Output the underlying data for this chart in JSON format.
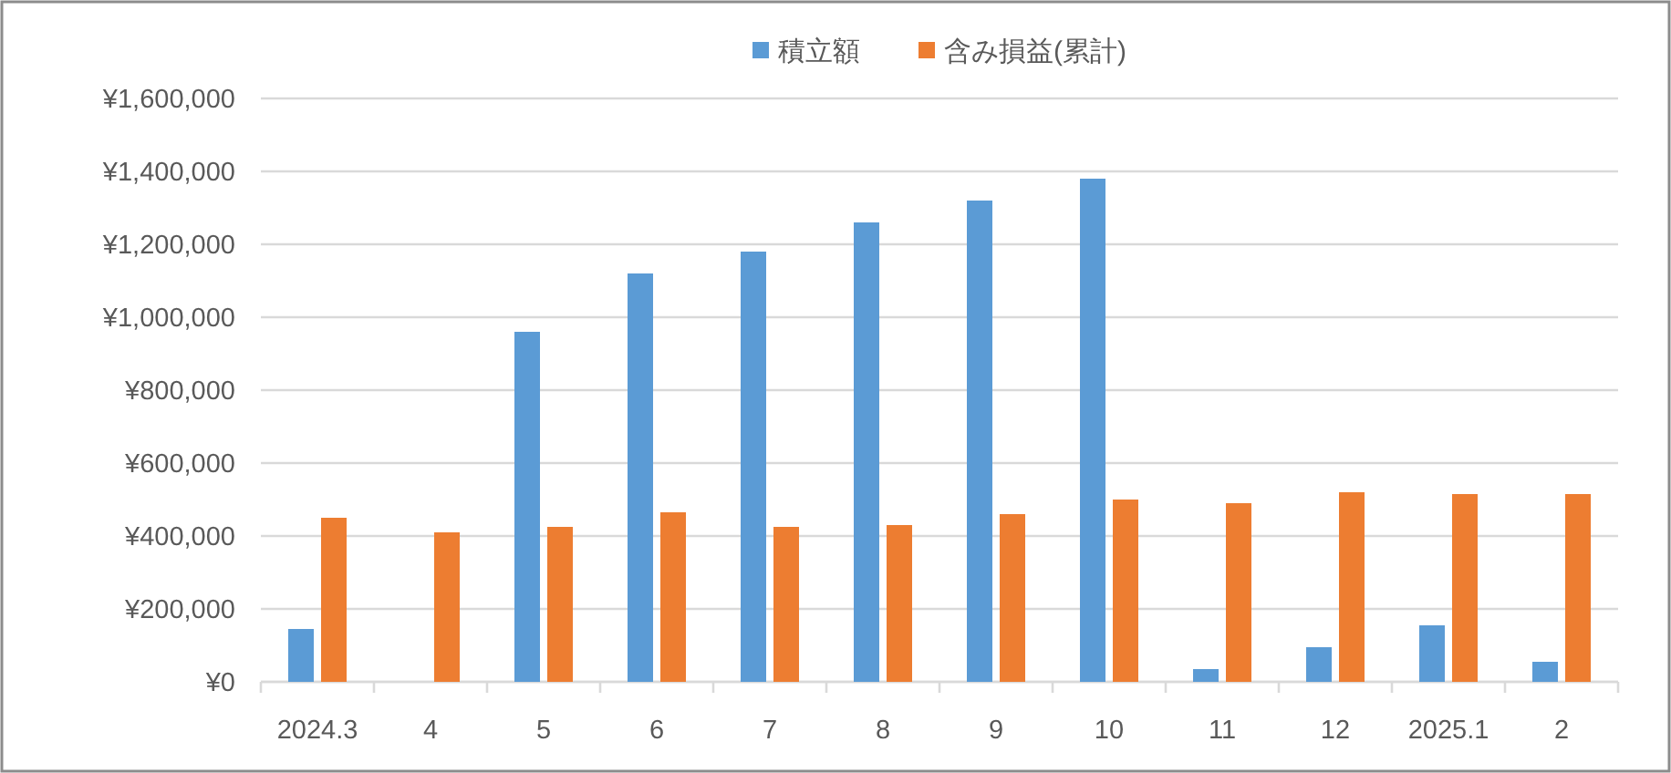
{
  "chart_data": {
    "type": "bar",
    "categories": [
      "2024.3",
      "4",
      "5",
      "6",
      "7",
      "8",
      "9",
      "10",
      "11",
      "12",
      "2025.1",
      "2"
    ],
    "series": [
      {
        "name": "積立額",
        "color": "#5b9bd5",
        "values": [
          145000,
          null,
          960000,
          1120000,
          1180000,
          1260000,
          1320000,
          1380000,
          35000,
          95000,
          155000,
          55000
        ]
      },
      {
        "name": "含み損益(累計)",
        "color": "#ed7d31",
        "values": [
          450000,
          410000,
          425000,
          465000,
          425000,
          430000,
          460000,
          500000,
          490000,
          520000,
          515000,
          515000
        ]
      }
    ],
    "ylim": [
      0,
      1600000
    ],
    "yticks": [
      {
        "value": 0,
        "label": "¥0"
      },
      {
        "value": 200000,
        "label": "¥200,000"
      },
      {
        "value": 400000,
        "label": "¥400,000"
      },
      {
        "value": 600000,
        "label": "¥600,000"
      },
      {
        "value": 800000,
        "label": "¥800,000"
      },
      {
        "value": 1000000,
        "label": "¥1,000,000"
      },
      {
        "value": 1200000,
        "label": "¥1,200,000"
      },
      {
        "value": 1400000,
        "label": "¥1,400,000"
      },
      {
        "value": 1600000,
        "label": "¥1,600,000"
      }
    ],
    "grid": "y",
    "legend": "top"
  }
}
